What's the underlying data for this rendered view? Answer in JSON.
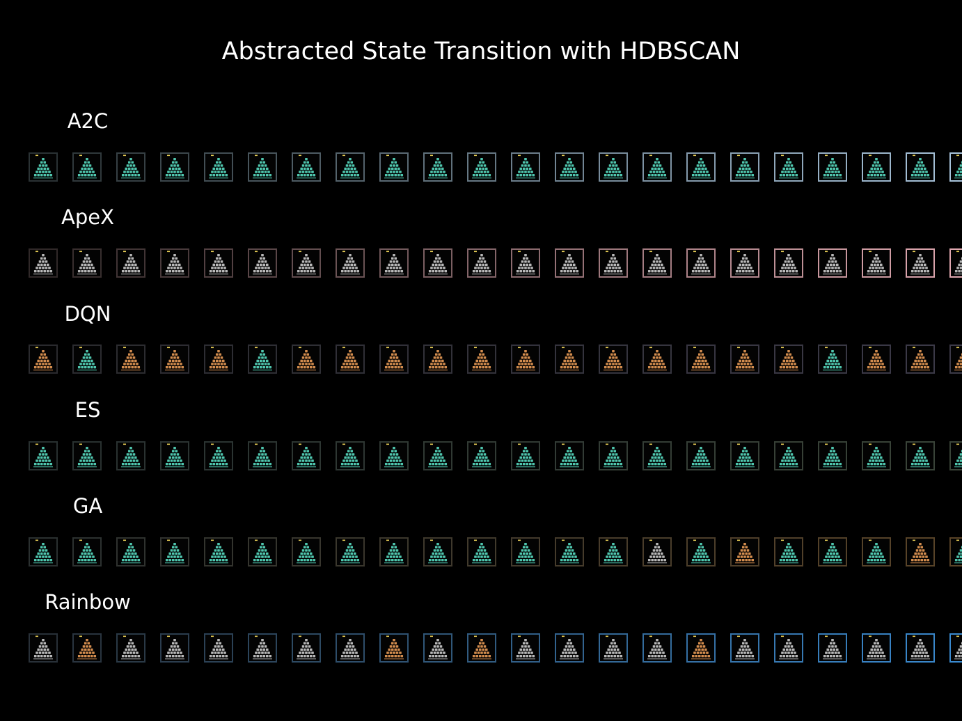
{
  "title": "Abstracted State Transition with HDBSCAN",
  "state_colors": {
    "teal": "#4fc6ae",
    "gray": "#b8b8b8",
    "orange": "#d28c4e",
    "marker": "#e6cc55"
  },
  "rows": [
    {
      "label": "A2C",
      "border_start": "#2a3234",
      "border_end": "#a8c4dc",
      "states": [
        "teal",
        "teal",
        "teal",
        "teal",
        "teal",
        "teal",
        "teal",
        "teal",
        "teal",
        "teal",
        "teal",
        "teal",
        "teal",
        "teal",
        "teal",
        "teal",
        "teal",
        "teal",
        "teal",
        "teal",
        "teal",
        "teal"
      ]
    },
    {
      "label": "ApeX",
      "border_start": "#302828",
      "border_end": "#e0a8b0",
      "states": [
        "gray",
        "gray",
        "gray",
        "gray",
        "gray",
        "gray",
        "gray",
        "gray",
        "gray",
        "gray",
        "gray",
        "gray",
        "gray",
        "gray",
        "gray",
        "gray",
        "gray",
        "gray",
        "gray",
        "gray",
        "gray",
        "gray"
      ]
    },
    {
      "label": "DQN",
      "border_start": "#2a2a2e",
      "border_end": "#3c3a48",
      "states": [
        "orange",
        "teal",
        "orange",
        "orange",
        "orange",
        "teal",
        "orange",
        "orange",
        "orange",
        "orange",
        "orange",
        "orange",
        "orange",
        "orange",
        "orange",
        "orange",
        "orange",
        "orange",
        "teal",
        "orange",
        "orange",
        "orange"
      ]
    },
    {
      "label": "ES",
      "border_start": "#283030",
      "border_end": "#3a4438",
      "states": [
        "teal",
        "teal",
        "teal",
        "teal",
        "teal",
        "teal",
        "teal",
        "teal",
        "teal",
        "teal",
        "teal",
        "teal",
        "teal",
        "teal",
        "teal",
        "teal",
        "teal",
        "teal",
        "teal",
        "teal",
        "teal",
        "teal"
      ]
    },
    {
      "label": "GA",
      "border_start": "#2a3030",
      "border_end": "#5a4428",
      "states": [
        "teal",
        "teal",
        "teal",
        "teal",
        "teal",
        "teal",
        "teal",
        "teal",
        "teal",
        "teal",
        "teal",
        "teal",
        "teal",
        "teal",
        "gray",
        "teal",
        "orange",
        "teal",
        "teal",
        "teal",
        "orange",
        "teal"
      ]
    },
    {
      "label": "Rainbow",
      "border_start": "#283038",
      "border_end": "#3a8ad0",
      "states": [
        "gray",
        "orange",
        "gray",
        "gray",
        "gray",
        "gray",
        "gray",
        "gray",
        "orange",
        "gray",
        "orange",
        "gray",
        "gray",
        "gray",
        "gray",
        "orange",
        "gray",
        "gray",
        "gray",
        "gray",
        "gray",
        "gray"
      ]
    }
  ]
}
